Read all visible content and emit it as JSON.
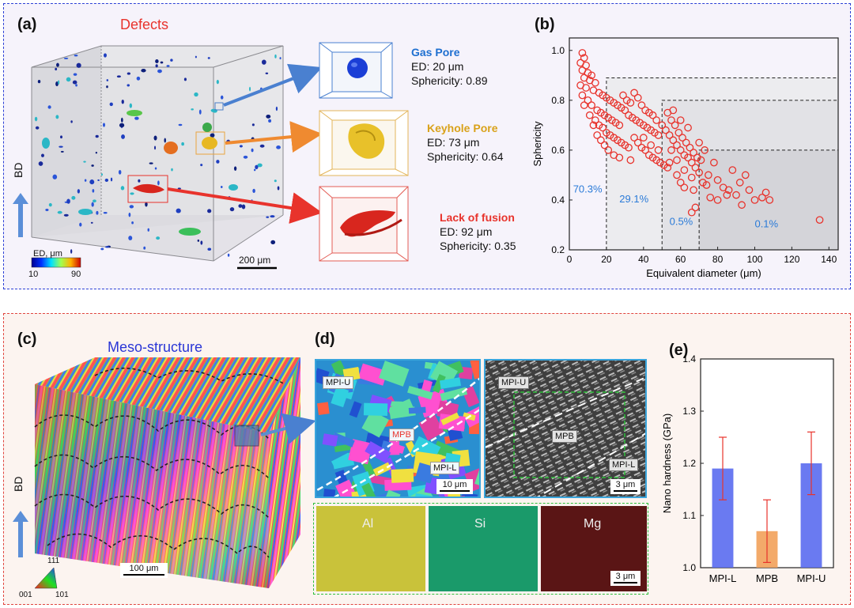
{
  "panel_a": {
    "label": "(a)",
    "title": "Defects",
    "bd_label": "BD",
    "colorbar": {
      "label": "ED, μm",
      "min": "10",
      "max": "90"
    },
    "scalebar": "200 μm",
    "insets": [
      {
        "name": "Gas Pore",
        "ed": "ED: 20 μm",
        "sphericity": "Sphericity: 0.89",
        "color": "#1e6fd0"
      },
      {
        "name": "Keyhole Pore",
        "ed": "ED: 73 μm",
        "sphericity": "Sphericity: 0.64",
        "color": "#d9a21b"
      },
      {
        "name": "Lack of fusion",
        "ed": "ED: 92 μm",
        "sphericity": "Sphericity: 0.35",
        "color": "#e8332c"
      }
    ]
  },
  "panel_b": {
    "label": "(b)",
    "chart_data": {
      "type": "scatter",
      "xlabel": "Equivalent diameter (μm)",
      "ylabel": "Sphericity",
      "xlim": [
        0,
        145
      ],
      "ylim": [
        0.2,
        1.05
      ],
      "xticks": [
        "0",
        "20",
        "40",
        "60",
        "80",
        "100",
        "120",
        "140"
      ],
      "yticks": [
        "0.2",
        "0.4",
        "0.6",
        "0.8",
        "1.0"
      ],
      "regions": [
        {
          "x_from": 20,
          "y_top": 0.89,
          "label": "70.3%"
        },
        {
          "x_from": 50,
          "y_top": 0.8,
          "label": "29.1%"
        },
        {
          "x_from": 70,
          "y_top": 0.6,
          "label": "0.5%"
        },
        {
          "x_from": 140,
          "y_top": 0.6,
          "label": "0.1%"
        }
      ],
      "marker_color": "#e8332c",
      "points": [
        [
          7,
          0.99
        ],
        [
          8,
          0.97
        ],
        [
          6,
          0.95
        ],
        [
          9,
          0.94
        ],
        [
          7,
          0.92
        ],
        [
          10,
          0.91
        ],
        [
          12,
          0.9
        ],
        [
          8,
          0.89
        ],
        [
          11,
          0.88
        ],
        [
          14,
          0.87
        ],
        [
          6,
          0.86
        ],
        [
          9,
          0.85
        ],
        [
          13,
          0.84
        ],
        [
          16,
          0.83
        ],
        [
          18,
          0.82
        ],
        [
          20,
          0.81
        ],
        [
          22,
          0.8
        ],
        [
          24,
          0.79
        ],
        [
          26,
          0.78
        ],
        [
          28,
          0.77
        ],
        [
          7,
          0.82
        ],
        [
          10,
          0.8
        ],
        [
          12,
          0.78
        ],
        [
          15,
          0.76
        ],
        [
          17,
          0.75
        ],
        [
          19,
          0.74
        ],
        [
          21,
          0.73
        ],
        [
          23,
          0.72
        ],
        [
          25,
          0.71
        ],
        [
          27,
          0.7
        ],
        [
          30,
          0.76
        ],
        [
          32,
          0.74
        ],
        [
          34,
          0.73
        ],
        [
          36,
          0.72
        ],
        [
          38,
          0.71
        ],
        [
          40,
          0.7
        ],
        [
          42,
          0.69
        ],
        [
          44,
          0.68
        ],
        [
          46,
          0.67
        ],
        [
          48,
          0.66
        ],
        [
          29,
          0.82
        ],
        [
          31,
          0.8
        ],
        [
          33,
          0.79
        ],
        [
          35,
          0.83
        ],
        [
          37,
          0.81
        ],
        [
          39,
          0.78
        ],
        [
          41,
          0.76
        ],
        [
          43,
          0.75
        ],
        [
          45,
          0.74
        ],
        [
          47,
          0.72
        ],
        [
          14,
          0.72
        ],
        [
          16,
          0.7
        ],
        [
          18,
          0.69
        ],
        [
          20,
          0.67
        ],
        [
          22,
          0.66
        ],
        [
          24,
          0.65
        ],
        [
          26,
          0.64
        ],
        [
          28,
          0.63
        ],
        [
          30,
          0.62
        ],
        [
          32,
          0.61
        ],
        [
          50,
          0.7
        ],
        [
          52,
          0.68
        ],
        [
          54,
          0.66
        ],
        [
          56,
          0.64
        ],
        [
          58,
          0.62
        ],
        [
          60,
          0.6
        ],
        [
          62,
          0.58
        ],
        [
          64,
          0.57
        ],
        [
          66,
          0.55
        ],
        [
          68,
          0.53
        ],
        [
          53,
          0.75
        ],
        [
          55,
          0.72
        ],
        [
          57,
          0.7
        ],
        [
          59,
          0.67
        ],
        [
          61,
          0.65
        ],
        [
          63,
          0.63
        ],
        [
          65,
          0.61
        ],
        [
          67,
          0.59
        ],
        [
          69,
          0.57
        ],
        [
          71,
          0.56
        ],
        [
          35,
          0.65
        ],
        [
          37,
          0.63
        ],
        [
          39,
          0.61
        ],
        [
          41,
          0.6
        ],
        [
          43,
          0.58
        ],
        [
          45,
          0.57
        ],
        [
          47,
          0.56
        ],
        [
          49,
          0.55
        ],
        [
          51,
          0.54
        ],
        [
          53,
          0.53
        ],
        [
          56,
          0.76
        ],
        [
          60,
          0.72
        ],
        [
          64,
          0.69
        ],
        [
          55,
          0.6
        ],
        [
          58,
          0.56
        ],
        [
          62,
          0.52
        ],
        [
          66,
          0.49
        ],
        [
          70,
          0.51
        ],
        [
          72,
          0.47
        ],
        [
          74,
          0.46
        ],
        [
          75,
          0.5
        ],
        [
          78,
          0.55
        ],
        [
          80,
          0.48
        ],
        [
          83,
          0.45
        ],
        [
          86,
          0.44
        ],
        [
          88,
          0.52
        ],
        [
          90,
          0.42
        ],
        [
          92,
          0.47
        ],
        [
          95,
          0.5
        ],
        [
          97,
          0.44
        ],
        [
          100,
          0.4
        ],
        [
          104,
          0.41
        ],
        [
          106,
          0.43
        ],
        [
          108,
          0.4
        ],
        [
          93,
          0.38
        ],
        [
          85,
          0.42
        ],
        [
          80,
          0.4
        ],
        [
          76,
          0.41
        ],
        [
          68,
          0.37
        ],
        [
          66,
          0.35
        ],
        [
          73,
          0.6
        ],
        [
          70,
          0.63
        ],
        [
          67,
          0.44
        ],
        [
          62,
          0.45
        ],
        [
          60,
          0.47
        ],
        [
          58,
          0.5
        ],
        [
          54,
          0.55
        ],
        [
          48,
          0.6
        ],
        [
          44,
          0.62
        ],
        [
          40,
          0.65
        ],
        [
          8,
          0.78
        ],
        [
          11,
          0.74
        ],
        [
          13,
          0.7
        ],
        [
          15,
          0.66
        ],
        [
          17,
          0.64
        ],
        [
          19,
          0.62
        ],
        [
          21,
          0.6
        ],
        [
          24,
          0.58
        ],
        [
          27,
          0.57
        ],
        [
          33,
          0.56
        ],
        [
          135,
          0.32
        ]
      ]
    }
  },
  "panel_c": {
    "label": "(c)",
    "title": "Meso-structure",
    "bd_label": "BD",
    "scalebar": "100 μm",
    "ipf": {
      "top": "111",
      "left": "001",
      "right": "101"
    }
  },
  "panel_d": {
    "label": "(d)",
    "ebsd": {
      "upper": "MPI-U",
      "middle": "MPB",
      "lower": "MPI-L",
      "scalebar": "10 μm"
    },
    "sem": {
      "upper": "MPI-U",
      "middle": "MPB",
      "lower": "MPI-L",
      "scalebar": "3 μm"
    },
    "eds": [
      {
        "element": "Al",
        "color": "#c9c23a"
      },
      {
        "element": "Si",
        "color": "#1a9a6a"
      },
      {
        "element": "Mg",
        "color": "#5a1515"
      }
    ],
    "eds_scalebar": "3 μm"
  },
  "panel_e": {
    "label": "(e)",
    "chart_data": {
      "type": "bar",
      "categories": [
        "MPI-L",
        "MPB",
        "MPI-U"
      ],
      "values": [
        1.19,
        1.07,
        1.2
      ],
      "errors": [
        0.06,
        0.06,
        0.06
      ],
      "colors": [
        "#5a6bf0",
        "#f2a15a",
        "#5a6bf0"
      ],
      "ylabel": "Nano hardness (GPa)",
      "ylim": [
        1.0,
        1.4
      ],
      "yticks": [
        "1.0",
        "1.1",
        "1.2",
        "1.3",
        "1.4"
      ]
    }
  }
}
